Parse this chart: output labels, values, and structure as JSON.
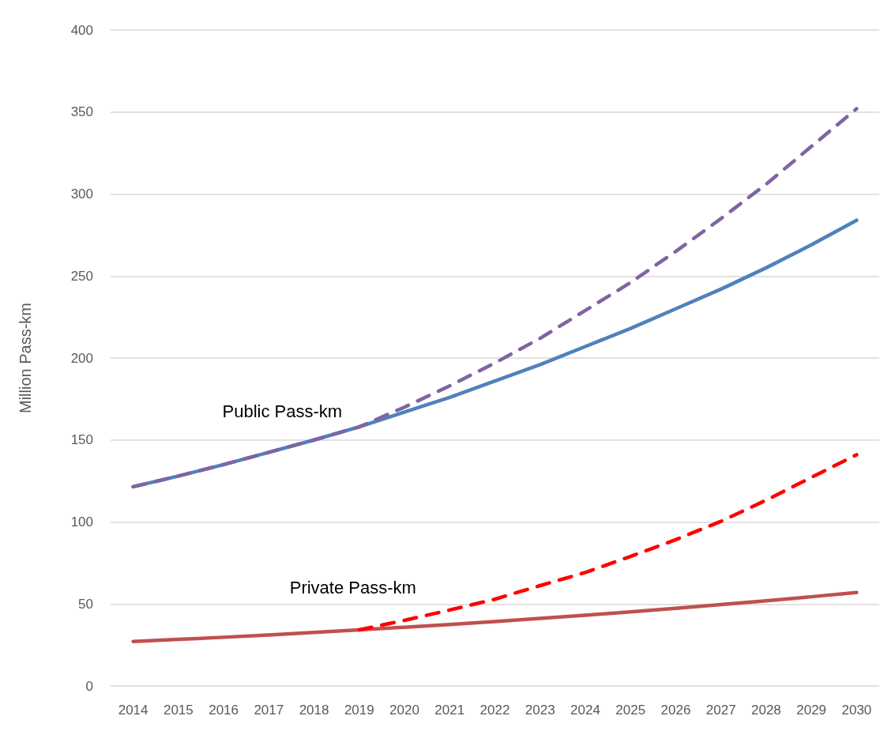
{
  "chart_data": {
    "type": "line",
    "ylabel": "Million Pass-km",
    "categories": [
      "2014",
      "2015",
      "2016",
      "2017",
      "2018",
      "2019",
      "2020",
      "2021",
      "2022",
      "2023",
      "2024",
      "2025",
      "2026",
      "2027",
      "2028",
      "2029",
      "2030"
    ],
    "ylim": [
      0,
      400
    ],
    "yticks": [
      0,
      50,
      100,
      150,
      200,
      250,
      300,
      350,
      400
    ],
    "grid": "y",
    "legend": false,
    "marker": "none",
    "series": [
      {
        "name": "Public Pass-km",
        "color": "#4f81bd",
        "line_style": "solid",
        "values": [
          121.5,
          128,
          135,
          142.5,
          150,
          158,
          167,
          176,
          186,
          196,
          207,
          218,
          230,
          242,
          255,
          269,
          284
        ]
      },
      {
        "color": "#8064a2",
        "line_style": "dashed",
        "values": [
          121.5,
          128,
          135,
          142.5,
          150,
          158,
          170,
          183,
          197,
          212,
          229,
          246,
          265,
          285,
          306,
          329,
          352
        ]
      },
      {
        "name": "Private Pass-km",
        "color": "#c0504d",
        "line_style": "solid",
        "values": [
          27.1,
          28.4,
          29.7,
          31.1,
          32.6,
          34.2,
          35.8,
          37.5,
          39.3,
          41.2,
          43.1,
          45.2,
          47.3,
          49.6,
          51.9,
          54.4,
          57
        ]
      },
      {
        "color": "#ff0000",
        "line_style": "dashed",
        "values": [
          null,
          null,
          null,
          null,
          null,
          34.2,
          40,
          46.3,
          52.9,
          61.2,
          69.2,
          79,
          89.2,
          100.4,
          113.3,
          127.2,
          141
        ]
      }
    ]
  }
}
